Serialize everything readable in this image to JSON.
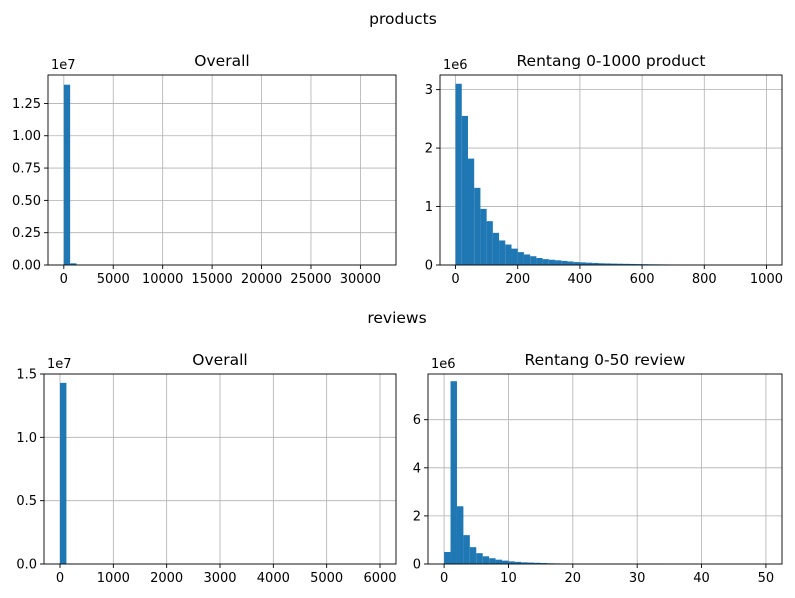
{
  "titles": {
    "top": "products",
    "bottom": "reviews"
  },
  "colors": {
    "bar": "#1f77b4",
    "grid": "#b0b0b0",
    "axis": "#000000"
  },
  "chart_data": [
    {
      "type": "bar",
      "title": "Overall",
      "offset_label": "1e7",
      "grid": true,
      "xlim": [
        -1600,
        33600
      ],
      "ylim": [
        0,
        1.47
      ],
      "xticks": [
        0,
        5000,
        10000,
        15000,
        20000,
        25000,
        30000
      ],
      "xtick_labels": [
        "0",
        "5000",
        "10000",
        "15000",
        "20000",
        "25000",
        "30000"
      ],
      "yticks": [
        0,
        0.25,
        0.5,
        0.75,
        1.0,
        1.25
      ],
      "ytick_labels": [
        "0.00",
        "0.25",
        "0.50",
        "0.75",
        "1.00",
        "1.25"
      ],
      "bins": [
        {
          "x0": 0,
          "x1": 640,
          "value": 1.395
        },
        {
          "x0": 640,
          "x1": 1280,
          "value": 0.013
        },
        {
          "x0": 1280,
          "x1": 1920,
          "value": 0.002
        }
      ]
    },
    {
      "type": "bar",
      "title": "Rentang 0-1000 product",
      "offset_label": "1e6",
      "grid": true,
      "xlim": [
        -50,
        1050
      ],
      "ylim": [
        0,
        3.25
      ],
      "xticks": [
        0,
        200,
        400,
        600,
        800,
        1000
      ],
      "xtick_labels": [
        "0",
        "200",
        "400",
        "600",
        "800",
        "1000"
      ],
      "yticks": [
        0,
        1,
        2,
        3
      ],
      "ytick_labels": [
        "0",
        "1",
        "2",
        "3"
      ],
      "bin_start": 0,
      "bin_width": 20,
      "values": [
        3.1,
        2.55,
        1.82,
        1.32,
        0.96,
        0.75,
        0.55,
        0.42,
        0.35,
        0.28,
        0.22,
        0.18,
        0.15,
        0.12,
        0.1,
        0.09,
        0.08,
        0.07,
        0.06,
        0.05,
        0.045,
        0.04,
        0.035,
        0.03,
        0.027,
        0.024,
        0.022,
        0.02,
        0.018,
        0.016,
        0.014,
        0.012,
        0.011,
        0.01,
        0.009,
        0.008,
        0.007,
        0.006,
        0.006,
        0.005,
        0.005,
        0.004,
        0.004,
        0.003,
        0.003,
        0.003,
        0.002,
        0.002,
        0.002,
        0.002
      ]
    },
    {
      "type": "bar",
      "title": "Overall",
      "offset_label": "1e7",
      "grid": true,
      "xlim": [
        -300,
        6300
      ],
      "ylim": [
        0,
        1.5
      ],
      "xticks": [
        0,
        1000,
        2000,
        3000,
        4000,
        5000,
        6000
      ],
      "xtick_labels": [
        "0",
        "1000",
        "2000",
        "3000",
        "4000",
        "5000",
        "6000"
      ],
      "yticks": [
        0,
        0.5,
        1.0,
        1.5
      ],
      "ytick_labels": [
        "0.0",
        "0.5",
        "1.0",
        "1.5"
      ],
      "bins": [
        {
          "x0": 0,
          "x1": 120,
          "value": 1.43
        },
        {
          "x0": 120,
          "x1": 240,
          "value": 0.004
        }
      ]
    },
    {
      "type": "bar",
      "title": "Rentang 0-50 review",
      "offset_label": "1e6",
      "grid": true,
      "xlim": [
        -2.5,
        52.5
      ],
      "ylim": [
        0,
        7.9
      ],
      "xticks": [
        0,
        10,
        20,
        30,
        40,
        50
      ],
      "xtick_labels": [
        "0",
        "10",
        "20",
        "30",
        "40",
        "50"
      ],
      "yticks": [
        0,
        2,
        4,
        6
      ],
      "ytick_labels": [
        "0",
        "2",
        "4",
        "6"
      ],
      "bin_start": 0,
      "bin_width": 1,
      "values": [
        0.5,
        7.6,
        2.4,
        1.2,
        0.7,
        0.45,
        0.32,
        0.24,
        0.18,
        0.14,
        0.11,
        0.09,
        0.07,
        0.06,
        0.05,
        0.04,
        0.03,
        0.025,
        0.02,
        0.018,
        0.015,
        0.013,
        0.011,
        0.01,
        0.009,
        0.008,
        0.007,
        0.006,
        0.005,
        0.005,
        0.004,
        0.004,
        0.003,
        0.003,
        0.003,
        0.002,
        0.002,
        0.002,
        0.002,
        0.002,
        0.001,
        0.001,
        0.001,
        0.001,
        0.001,
        0.001,
        0.001,
        0.001,
        0.001,
        0.001
      ]
    }
  ]
}
